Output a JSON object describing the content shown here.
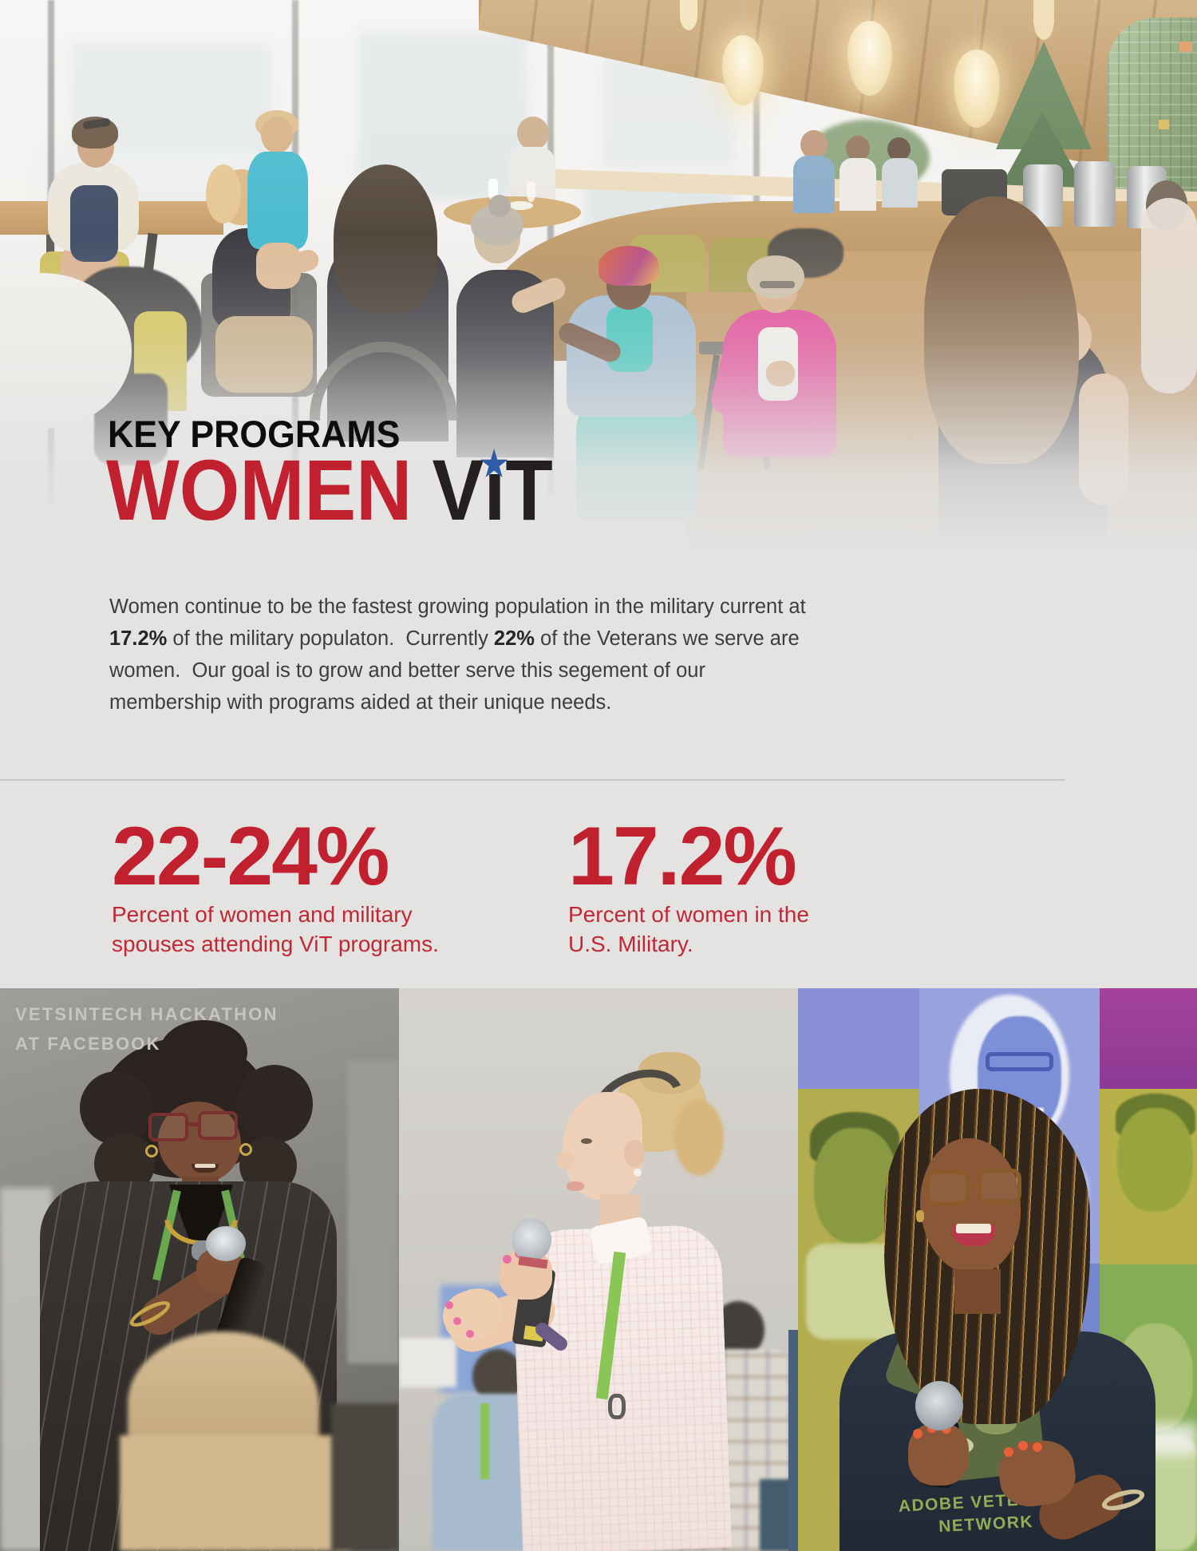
{
  "colors": {
    "page_bg": "#e4e3e2",
    "accent_red": "#c1202f",
    "title_black": "#242021",
    "star_blue": "#2e5ca8",
    "body_text": "#3e3d3d",
    "divider_gray": "#c9c8c6",
    "caption_gray": "#c6c5c1",
    "shirt_text_green": "#8fae57"
  },
  "hero": {
    "kicker": "KEY PROGRAMS",
    "title_red": "WOMEN",
    "title_v": "V",
    "title_i": "i",
    "title_t": "T",
    "star_icon": "★"
  },
  "intro": {
    "part1": "Women continue to be the fastest growing population in the military current at\n",
    "bold1": "17.2%",
    "part2": " of the military populaton.  Currently ",
    "bold2": "22%",
    "part3": " of the Veterans we serve are\nwomen.  Our goal is to grow and better serve this segement of our\nmembership with programs aided at their unique needs."
  },
  "stats": [
    {
      "value": "22-24%",
      "line1": "Percent of women and military",
      "line2": "spouses attending ViT programs."
    },
    {
      "value": "17.2%",
      "line1": "Percent of women in the",
      "line2": "U.S. Military."
    }
  ],
  "gallery": {
    "caption_line1": "VETSINTECH HACKATHON",
    "caption_line2": "AT FACEBOOK",
    "shirt_line1": "ADOBE VETERANS",
    "shirt_line2": "NETWORK"
  }
}
